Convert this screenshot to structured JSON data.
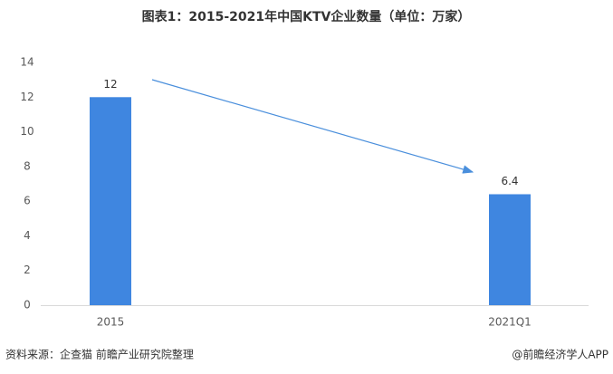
{
  "chart_data": {
    "type": "bar",
    "title": "图表1：2015-2021年中国KTV企业数量（单位：万家）",
    "categories": [
      "2015",
      "2021Q1"
    ],
    "values": [
      12,
      6.4
    ],
    "color": "#3f86e0",
    "ylim": [
      0,
      14
    ],
    "yticks": [
      0,
      2,
      4,
      6,
      8,
      10,
      12,
      14
    ],
    "grid": false,
    "source": "资料来源：企查猫 前瞻产业研究院整理",
    "credit": "@前瞻经济学人APP"
  }
}
